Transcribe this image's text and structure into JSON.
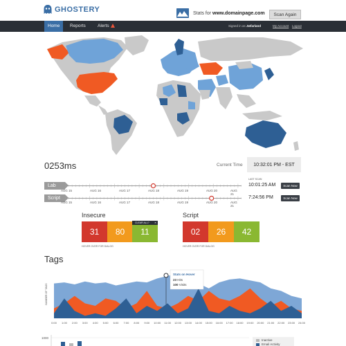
{
  "header": {
    "logo_text": "GHOSTERY",
    "stats_prefix": "Stats for",
    "domain": "www.domainpage.com",
    "scan_again_label": "Scan Again"
  },
  "nav": {
    "items": [
      {
        "label": "Home",
        "active": true
      },
      {
        "label": "Reports",
        "active": false
      },
      {
        "label": "Alerts",
        "active": false
      }
    ],
    "signed_in_prefix": "Signed in as",
    "username": "Jwfarland",
    "my_account": "My Account",
    "logout": "Logout"
  },
  "map": {
    "colors": {
      "land": "#c9c9c9",
      "light_blue": "#6fa3d8",
      "dark_blue": "#2e5f94",
      "orange": "#f05a23"
    }
  },
  "time_row": {
    "speed": "0253ms",
    "current_time_label": "Current Time",
    "current_time": "10:32:01 PM  -  EST"
  },
  "timelines": {
    "last_scan_label": "LAST SCAN",
    "scan_now_label": "Scan Now",
    "rows": [
      {
        "label": "Lab",
        "dates": [
          "AUG 15",
          "AUG 16",
          "AUG 17",
          "AUG 18",
          "AUG 19",
          "AUG 20",
          "AUG 21"
        ],
        "marker_fraction": 0.5,
        "scan_time": "10:01:25 AM"
      },
      {
        "label": "Script",
        "dates": [
          "AUG 15",
          "AUG 16",
          "AUG 17",
          "AUG 18",
          "AUG 19",
          "AUG 20",
          "AUG 21"
        ],
        "marker_fraction": 0.83,
        "scan_time": "7:24:56 PM"
      }
    ]
  },
  "scores": {
    "insecure": {
      "title": "Insecure",
      "values": [
        "31",
        "80",
        "11"
      ],
      "clear_all": "CLEAR ALL?",
      "hover_note": "HOVER OVER FOR DIALOG"
    },
    "script": {
      "title": "Script",
      "values": [
        "02",
        "26",
        "42"
      ],
      "hover_note": "HOVER OVER FOR DIALOG"
    },
    "colors": {
      "red": "#d2382d",
      "orange": "#f29a1d",
      "green": "#8ab832"
    }
  },
  "tags": {
    "title": "Tags",
    "tooltip": {
      "title": "Stats on Hover",
      "hits_value": "23",
      "hits_label": "Hits",
      "visits_value": "100",
      "visits_label": "Visits"
    }
  },
  "chart_data": {
    "type": "area",
    "ylabel": "NUMBER OF TAGS",
    "x": [
      "0:00",
      "1:00",
      "2:00",
      "3:00",
      "4:00",
      "5:00",
      "6:00",
      "7:00",
      "8:00",
      "9:00",
      "10:00",
      "11:00",
      "12:00",
      "13:00",
      "14:00",
      "15:00",
      "16:00",
      "17:00",
      "18:00",
      "19:00",
      "20:00",
      "21:00",
      "22:00",
      "23:00",
      "24:00"
    ],
    "ylim": [
      0,
      100
    ],
    "series": [
      {
        "color": "#7ea7d6",
        "values": [
          70,
          72,
          68,
          74,
          70,
          72,
          66,
          70,
          74,
          72,
          80,
          85,
          90,
          75,
          70,
          60,
          72,
          78,
          80,
          76,
          72,
          60,
          55,
          45,
          40
        ]
      },
      {
        "color": "#f05a23",
        "values": [
          20,
          30,
          45,
          30,
          25,
          40,
          35,
          20,
          30,
          55,
          25,
          20,
          30,
          45,
          35,
          55,
          40,
          35,
          45,
          60,
          40,
          25,
          35,
          20,
          15
        ]
      },
      {
        "color": "#2e5f94",
        "values": [
          10,
          40,
          15,
          5,
          10,
          5,
          20,
          40,
          10,
          25,
          15,
          30,
          10,
          20,
          60,
          15,
          10,
          25,
          15,
          10,
          20,
          35,
          15,
          25,
          10
        ]
      }
    ],
    "bottom_chart": {
      "ytick_top": "1000",
      "legend": [
        {
          "label": "Inactive",
          "color": "#b8b8b8"
        },
        {
          "label": "Email Activity",
          "color": "#2e5f94"
        }
      ]
    }
  }
}
